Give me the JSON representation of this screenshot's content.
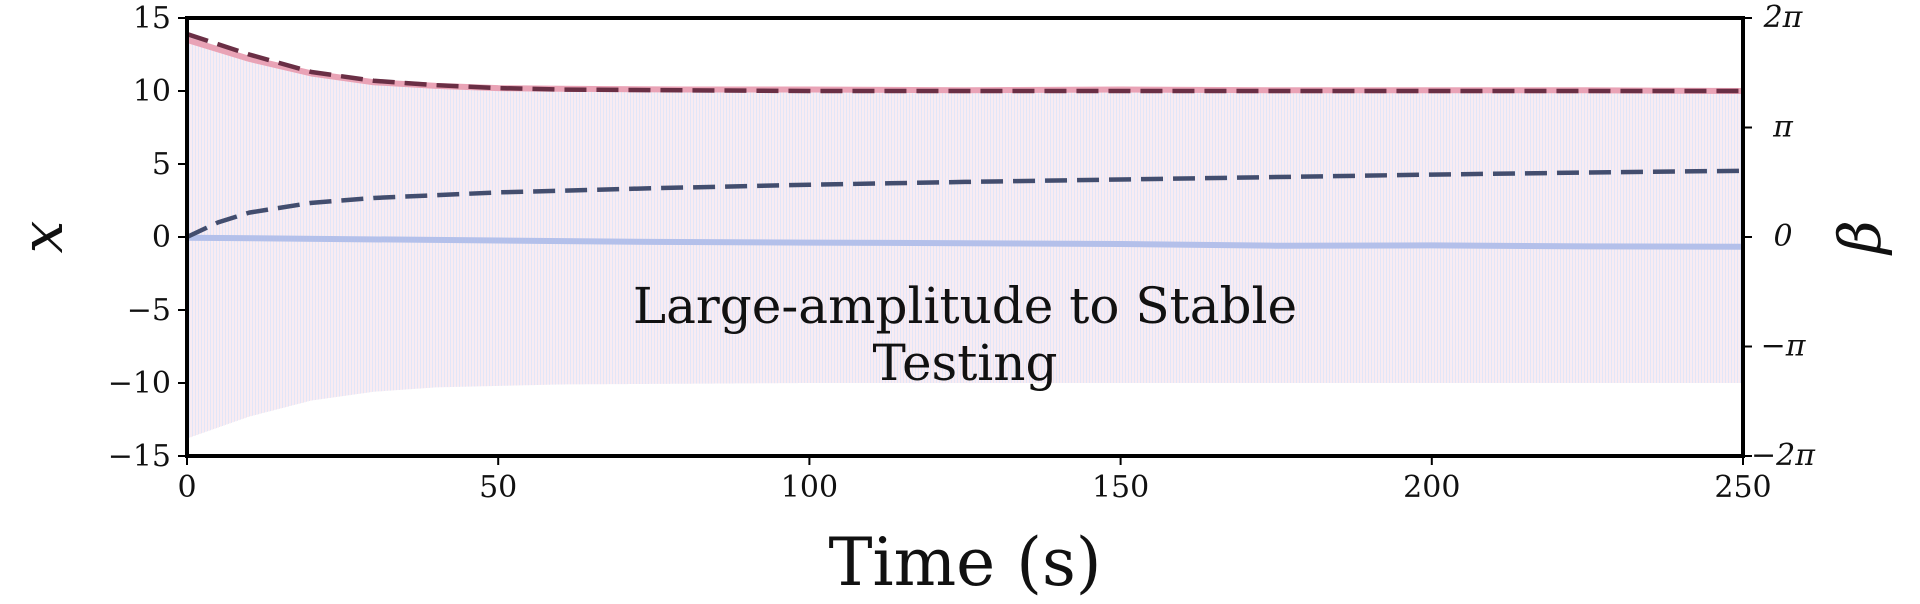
{
  "chart_data": {
    "type": "line",
    "annotation": [
      "Large-amplitude to Stable",
      "Testing"
    ],
    "xlabel": "Time (s)",
    "ylabel_left": "x",
    "ylabel_right": "β",
    "xlim": [
      0,
      250
    ],
    "ylim_left": [
      -15,
      15
    ],
    "ylim_right": [
      -6.2832,
      6.2832
    ],
    "xticks": [
      0,
      50,
      100,
      150,
      200,
      250
    ],
    "xtick_labels": [
      "0",
      "50",
      "100",
      "150",
      "200",
      "250"
    ],
    "yticks_left": [
      -15,
      -10,
      -5,
      0,
      5,
      10,
      15
    ],
    "ytick_labels_left": [
      "−15",
      "−10",
      "−5",
      "0",
      "5",
      "10",
      "15"
    ],
    "yticks_right": [
      -6.2832,
      -3.1416,
      0,
      3.1416,
      6.2832
    ],
    "ytick_labels_right": [
      "−2π",
      "−π",
      "0",
      "π",
      "2π"
    ],
    "grid": false,
    "legend": "none",
    "oscillation_band": {
      "axis": "left",
      "colors": [
        "#e3a9c4",
        "#bcc6ee"
      ],
      "upper": {
        "x": [
          0,
          10,
          20,
          30,
          40,
          50,
          60,
          80,
          100,
          250
        ],
        "y": [
          13.8,
          12.3,
          11.2,
          10.6,
          10.3,
          10.2,
          10.1,
          10.05,
          10.0,
          10.0
        ]
      },
      "lower": {
        "x": [
          0,
          10,
          20,
          30,
          40,
          50,
          60,
          80,
          100,
          250
        ],
        "y": [
          -13.8,
          -12.3,
          -11.2,
          -10.6,
          -10.3,
          -10.2,
          -10.1,
          -10.05,
          -10.0,
          -10.0
        ]
      }
    },
    "series": [
      {
        "axis": "left",
        "style": "solid",
        "color": "#e9a3b6",
        "x": [
          0,
          10,
          20,
          30,
          40,
          50,
          60,
          80,
          100,
          125,
          150,
          175,
          200,
          225,
          250
        ],
        "y": [
          13.5,
          12.2,
          11.2,
          10.6,
          10.35,
          10.2,
          10.15,
          10.1,
          10.1,
          10.05,
          10.1,
          10.05,
          10.05,
          10.05,
          10.0
        ]
      },
      {
        "axis": "left",
        "style": "dashed",
        "color": "#6a2f45",
        "x": [
          0,
          10,
          20,
          30,
          40,
          50,
          60,
          80,
          100,
          125,
          150,
          175,
          200,
          225,
          250
        ],
        "y": [
          13.9,
          12.5,
          11.3,
          10.7,
          10.4,
          10.2,
          10.1,
          10.05,
          10.0,
          10.0,
          10.0,
          10.0,
          10.0,
          10.0,
          10.0
        ]
      },
      {
        "axis": "right",
        "style": "solid",
        "color": "#b4c0ea",
        "x": [
          0,
          25,
          50,
          75,
          100,
          125,
          150,
          175,
          200,
          225,
          250
        ],
        "y": [
          -0.02,
          -0.06,
          -0.1,
          -0.14,
          -0.16,
          -0.18,
          -0.2,
          -0.25,
          -0.24,
          -0.27,
          -0.28
        ]
      },
      {
        "axis": "right",
        "style": "dashed",
        "color": "#434d6e",
        "x": [
          0,
          5,
          10,
          20,
          30,
          50,
          75,
          100,
          125,
          150,
          175,
          200,
          225,
          250
        ],
        "y": [
          0.0,
          0.42,
          0.7,
          0.98,
          1.12,
          1.28,
          1.4,
          1.5,
          1.58,
          1.65,
          1.72,
          1.79,
          1.85,
          1.9
        ]
      }
    ]
  }
}
